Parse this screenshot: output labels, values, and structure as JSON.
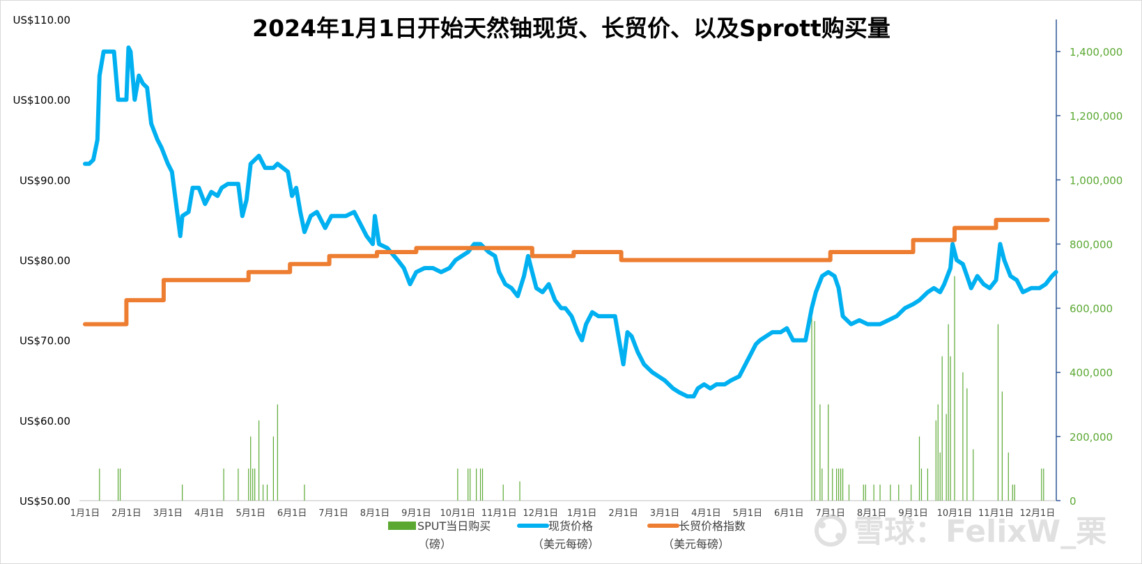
{
  "chart_data": {
    "type": "line",
    "title": "2024年1月1日开始天然铀现货、长贸价、以及Sprott购买量",
    "xlabel": "",
    "ylabel": "",
    "x_ticks": [
      "1月1日",
      "2月1日",
      "3月1日",
      "4月1日",
      "5月1日",
      "6月1日",
      "7月1日",
      "8月1日",
      "9月1日",
      "10月1日",
      "11月1日",
      "12月1日",
      "1月1日",
      "2月1日",
      "3月1日",
      "4月1日",
      "5月1日",
      "6月1日",
      "7月1日",
      "8月1日",
      "9月1日",
      "10月1日",
      "11月1日",
      "12月1日"
    ],
    "y_left": {
      "ylim": [
        50,
        110
      ],
      "ticks": [
        "US$50.00",
        "US$60.00",
        "US$70.00",
        "US$80.00",
        "US$90.00",
        "US$100.00",
        "US$110.00"
      ]
    },
    "y_right": {
      "ylim": [
        0,
        1500000
      ],
      "ticks": [
        "0",
        "200,000",
        "400,000",
        "600,000",
        "800,000",
        "1,000,000",
        "1,200,000",
        "1,400,000"
      ]
    },
    "series": [
      {
        "name": "SPUT当日购买",
        "unit": "（磅）",
        "axis": "right",
        "kind": "bar",
        "color": "#5aa832",
        "points": [
          [
            0.35,
            100000
          ],
          [
            0.8,
            100000
          ],
          [
            0.85,
            100000
          ],
          [
            2.35,
            50000
          ],
          [
            3.35,
            100000
          ],
          [
            3.7,
            100000
          ],
          [
            3.95,
            100000
          ],
          [
            4.0,
            200000
          ],
          [
            4.05,
            100000
          ],
          [
            4.1,
            100000
          ],
          [
            4.2,
            250000
          ],
          [
            4.3,
            50000
          ],
          [
            4.4,
            50000
          ],
          [
            4.55,
            200000
          ],
          [
            4.65,
            300000
          ],
          [
            5.3,
            50000
          ],
          [
            9.0,
            100000
          ],
          [
            9.25,
            100000
          ],
          [
            9.3,
            100000
          ],
          [
            9.45,
            100000
          ],
          [
            9.55,
            100000
          ],
          [
            9.6,
            100000
          ],
          [
            10.1,
            50000
          ],
          [
            10.5,
            60000
          ],
          [
            17.55,
            620000
          ],
          [
            17.62,
            560000
          ],
          [
            17.75,
            300000
          ],
          [
            17.8,
            100000
          ],
          [
            17.95,
            300000
          ],
          [
            18.05,
            100000
          ],
          [
            18.15,
            100000
          ],
          [
            18.2,
            100000
          ],
          [
            18.25,
            100000
          ],
          [
            18.3,
            100000
          ],
          [
            18.45,
            50000
          ],
          [
            18.8,
            50000
          ],
          [
            18.85,
            50000
          ],
          [
            19.05,
            50000
          ],
          [
            19.2,
            50000
          ],
          [
            19.45,
            50000
          ],
          [
            19.65,
            50000
          ],
          [
            19.95,
            50000
          ],
          [
            20.15,
            200000
          ],
          [
            20.2,
            100000
          ],
          [
            20.35,
            100000
          ],
          [
            20.55,
            250000
          ],
          [
            20.6,
            300000
          ],
          [
            20.65,
            150000
          ],
          [
            20.7,
            450000
          ],
          [
            20.8,
            270000
          ],
          [
            20.85,
            550000
          ],
          [
            20.9,
            450000
          ],
          [
            21.0,
            700000
          ],
          [
            21.2,
            400000
          ],
          [
            21.3,
            350000
          ],
          [
            21.45,
            160000
          ],
          [
            22.05,
            550000
          ],
          [
            22.15,
            340000
          ],
          [
            22.3,
            150000
          ],
          [
            22.4,
            50000
          ],
          [
            22.45,
            50000
          ],
          [
            23.1,
            100000
          ],
          [
            23.15,
            100000
          ]
        ]
      },
      {
        "name": "现货价格",
        "unit": "（美元每磅）",
        "axis": "left",
        "kind": "line",
        "color": "#00b0f0",
        "points": [
          [
            0.0,
            92.0
          ],
          [
            0.1,
            92.0
          ],
          [
            0.2,
            92.5
          ],
          [
            0.3,
            95.0
          ],
          [
            0.35,
            103.0
          ],
          [
            0.45,
            106.0
          ],
          [
            0.7,
            106.0
          ],
          [
            0.8,
            100.0
          ],
          [
            1.0,
            100.0
          ],
          [
            1.05,
            106.5
          ],
          [
            1.1,
            106.0
          ],
          [
            1.2,
            100.0
          ],
          [
            1.3,
            103.0
          ],
          [
            1.4,
            102.0
          ],
          [
            1.5,
            101.5
          ],
          [
            1.6,
            97.0
          ],
          [
            1.75,
            95.0
          ],
          [
            1.85,
            94.0
          ],
          [
            2.0,
            92.0
          ],
          [
            2.1,
            91.0
          ],
          [
            2.3,
            83.0
          ],
          [
            2.35,
            85.5
          ],
          [
            2.5,
            86.0
          ],
          [
            2.6,
            89.0
          ],
          [
            2.75,
            89.0
          ],
          [
            2.9,
            87.0
          ],
          [
            3.05,
            88.5
          ],
          [
            3.2,
            88.0
          ],
          [
            3.3,
            89.0
          ],
          [
            3.45,
            89.5
          ],
          [
            3.7,
            89.5
          ],
          [
            3.8,
            85.5
          ],
          [
            3.9,
            87.5
          ],
          [
            4.0,
            92.0
          ],
          [
            4.1,
            92.5
          ],
          [
            4.2,
            93.0
          ],
          [
            4.35,
            91.5
          ],
          [
            4.55,
            91.5
          ],
          [
            4.65,
            92.0
          ],
          [
            4.9,
            91.0
          ],
          [
            5.0,
            88.0
          ],
          [
            5.1,
            89.0
          ],
          [
            5.2,
            86.0
          ],
          [
            5.3,
            83.5
          ],
          [
            5.45,
            85.5
          ],
          [
            5.6,
            86.0
          ],
          [
            5.8,
            84.0
          ],
          [
            5.95,
            85.5
          ],
          [
            6.3,
            85.5
          ],
          [
            6.5,
            86.0
          ],
          [
            6.7,
            84.0
          ],
          [
            6.8,
            83.0
          ],
          [
            6.95,
            82.0
          ],
          [
            7.0,
            85.5
          ],
          [
            7.1,
            82.0
          ],
          [
            7.3,
            81.5
          ],
          [
            7.55,
            80.0
          ],
          [
            7.7,
            79.0
          ],
          [
            7.85,
            77.0
          ],
          [
            8.0,
            78.5
          ],
          [
            8.2,
            79.0
          ],
          [
            8.4,
            79.0
          ],
          [
            8.6,
            78.5
          ],
          [
            8.8,
            79.0
          ],
          [
            8.95,
            80.0
          ],
          [
            9.1,
            80.5
          ],
          [
            9.25,
            81.0
          ],
          [
            9.4,
            82.0
          ],
          [
            9.55,
            82.0
          ],
          [
            9.75,
            81.0
          ],
          [
            9.9,
            80.5
          ],
          [
            10.0,
            78.5
          ],
          [
            10.15,
            77.0
          ],
          [
            10.3,
            76.5
          ],
          [
            10.45,
            75.5
          ],
          [
            10.6,
            78.0
          ],
          [
            10.7,
            80.5
          ],
          [
            10.8,
            78.5
          ],
          [
            10.9,
            76.5
          ],
          [
            11.05,
            76.0
          ],
          [
            11.2,
            77.0
          ],
          [
            11.35,
            75.0
          ],
          [
            11.5,
            74.0
          ],
          [
            11.6,
            74.0
          ],
          [
            11.75,
            73.0
          ],
          [
            11.9,
            71.0
          ],
          [
            12.0,
            70.0
          ],
          [
            12.1,
            72.0
          ],
          [
            12.25,
            73.5
          ],
          [
            12.4,
            73.0
          ],
          [
            12.55,
            73.0
          ],
          [
            12.8,
            73.0
          ],
          [
            12.9,
            70.0
          ],
          [
            13.0,
            67.0
          ],
          [
            13.1,
            71.0
          ],
          [
            13.2,
            70.5
          ],
          [
            13.35,
            68.5
          ],
          [
            13.5,
            67.0
          ],
          [
            13.6,
            66.5
          ],
          [
            13.7,
            66.0
          ],
          [
            13.85,
            65.5
          ],
          [
            14.0,
            65.0
          ],
          [
            14.2,
            64.0
          ],
          [
            14.35,
            63.5
          ],
          [
            14.55,
            63.0
          ],
          [
            14.7,
            63.0
          ],
          [
            14.8,
            64.0
          ],
          [
            14.95,
            64.5
          ],
          [
            15.1,
            64.0
          ],
          [
            15.25,
            64.5
          ],
          [
            15.45,
            64.5
          ],
          [
            15.6,
            65.0
          ],
          [
            15.8,
            65.5
          ],
          [
            15.95,
            67.0
          ],
          [
            16.05,
            68.0
          ],
          [
            16.2,
            69.5
          ],
          [
            16.3,
            70.0
          ],
          [
            16.45,
            70.5
          ],
          [
            16.6,
            71.0
          ],
          [
            16.8,
            71.0
          ],
          [
            16.95,
            71.5
          ],
          [
            17.1,
            70.0
          ],
          [
            17.25,
            70.0
          ],
          [
            17.4,
            70.0
          ],
          [
            17.55,
            74.0
          ],
          [
            17.65,
            76.0
          ],
          [
            17.8,
            78.0
          ],
          [
            17.95,
            78.5
          ],
          [
            18.1,
            78.0
          ],
          [
            18.2,
            76.5
          ],
          [
            18.3,
            73.0
          ],
          [
            18.5,
            72.0
          ],
          [
            18.7,
            72.5
          ],
          [
            18.9,
            72.0
          ],
          [
            19.05,
            72.0
          ],
          [
            19.2,
            72.0
          ],
          [
            19.4,
            72.5
          ],
          [
            19.6,
            73.0
          ],
          [
            19.8,
            74.0
          ],
          [
            20.0,
            74.5
          ],
          [
            20.15,
            75.0
          ],
          [
            20.35,
            76.0
          ],
          [
            20.5,
            76.5
          ],
          [
            20.65,
            76.0
          ],
          [
            20.75,
            77.0
          ],
          [
            20.9,
            79.0
          ],
          [
            20.95,
            82.0
          ],
          [
            21.05,
            80.0
          ],
          [
            21.2,
            79.5
          ],
          [
            21.3,
            78.0
          ],
          [
            21.4,
            76.5
          ],
          [
            21.55,
            78.0
          ],
          [
            21.7,
            77.0
          ],
          [
            21.85,
            76.5
          ],
          [
            22.0,
            77.5
          ],
          [
            22.1,
            82.0
          ],
          [
            22.2,
            80.0
          ],
          [
            22.35,
            78.0
          ],
          [
            22.5,
            77.5
          ],
          [
            22.65,
            76.0
          ],
          [
            22.85,
            76.5
          ],
          [
            23.05,
            76.5
          ],
          [
            23.2,
            77.0
          ],
          [
            23.35,
            78.0
          ],
          [
            23.45,
            78.5
          ]
        ]
      },
      {
        "name": "长贸价格指数",
        "unit": "（美元每磅）",
        "axis": "left",
        "kind": "step",
        "color": "#ed7d31",
        "points": [
          [
            0.0,
            72.0
          ],
          [
            1.0,
            72.0
          ],
          [
            1.0,
            75.0
          ],
          [
            1.9,
            75.0
          ],
          [
            1.9,
            77.5
          ],
          [
            3.95,
            77.5
          ],
          [
            3.95,
            78.5
          ],
          [
            4.95,
            78.5
          ],
          [
            4.95,
            79.5
          ],
          [
            5.9,
            79.5
          ],
          [
            5.9,
            80.5
          ],
          [
            7.05,
            80.5
          ],
          [
            7.05,
            81.0
          ],
          [
            8.0,
            81.0
          ],
          [
            8.0,
            81.5
          ],
          [
            10.8,
            81.5
          ],
          [
            10.8,
            80.5
          ],
          [
            11.8,
            80.5
          ],
          [
            11.8,
            81.0
          ],
          [
            12.95,
            81.0
          ],
          [
            12.95,
            80.0
          ],
          [
            18.0,
            80.0
          ],
          [
            18.0,
            81.0
          ],
          [
            20.0,
            81.0
          ],
          [
            20.0,
            82.5
          ],
          [
            21.0,
            82.5
          ],
          [
            21.0,
            84.0
          ],
          [
            22.0,
            84.0
          ],
          [
            22.0,
            85.0
          ],
          [
            23.25,
            85.0
          ]
        ]
      }
    ],
    "grid": false,
    "legend": "bottom",
    "watermark": "雪球：FelixW_栗"
  }
}
